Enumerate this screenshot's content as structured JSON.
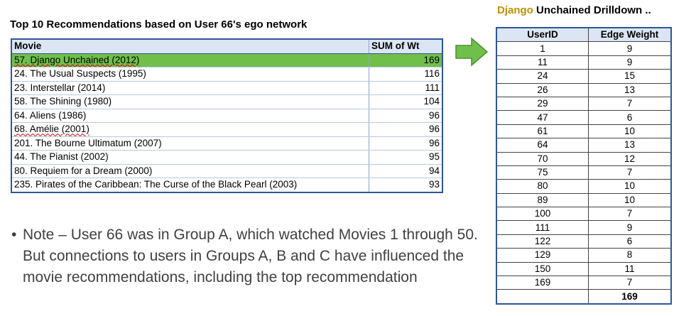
{
  "left": {
    "title": "Top 10 Recommendations based on User 66's ego network",
    "headers": {
      "movie": "Movie",
      "sum": "SUM of Wt"
    },
    "rows": [
      {
        "movie": "57. Django Unchained (2012)",
        "sum": "169",
        "highlight": true
      },
      {
        "movie": "24. The Usual Suspects (1995)",
        "sum": "116"
      },
      {
        "movie": "23. Interstellar (2014)",
        "sum": "111"
      },
      {
        "movie": "58. The Shining (1980)",
        "sum": "104"
      },
      {
        "movie": "64. Aliens (1986)",
        "sum": "96"
      },
      {
        "movie": "68. Amélie (2001)",
        "sum": "96"
      },
      {
        "movie": "201. The Bourne Ultimatum (2007)",
        "sum": "96"
      },
      {
        "movie": "44. The Pianist (2002)",
        "sum": "95"
      },
      {
        "movie": "80. Requiem for a Dream (2000)",
        "sum": "94"
      },
      {
        "movie": "235. Pirates of the Caribbean: The Curse of the Black Pearl (2003)",
        "sum": "93"
      }
    ]
  },
  "right": {
    "title_accent": "Django",
    "title_rest": " Unchained Drilldown ..",
    "headers": {
      "user": "UserID",
      "weight": "Edge Weight"
    },
    "rows": [
      {
        "user": "1",
        "weight": "9"
      },
      {
        "user": "11",
        "weight": "9"
      },
      {
        "user": "24",
        "weight": "15"
      },
      {
        "user": "26",
        "weight": "13"
      },
      {
        "user": "29",
        "weight": "7"
      },
      {
        "user": "47",
        "weight": "6"
      },
      {
        "user": "61",
        "weight": "10"
      },
      {
        "user": "64",
        "weight": "13"
      },
      {
        "user": "70",
        "weight": "12"
      },
      {
        "user": "75",
        "weight": "7"
      },
      {
        "user": "80",
        "weight": "10"
      },
      {
        "user": "89",
        "weight": "10"
      },
      {
        "user": "100",
        "weight": "7"
      },
      {
        "user": "111",
        "weight": "9"
      },
      {
        "user": "122",
        "weight": "6"
      },
      {
        "user": "129",
        "weight": "8"
      },
      {
        "user": "150",
        "weight": "11"
      },
      {
        "user": "169",
        "weight": "7"
      }
    ],
    "total": "169"
  },
  "note": {
    "bullet": "•",
    "text": "Note – User 66 was in Group A, which watched Movies 1 through 50.  But connections to users in Groups A, B and C have influenced the movie recommendations, including the top recommendation"
  },
  "colors": {
    "highlight": "#70bf4a",
    "arrow": "#70bf4a",
    "header_fill": "#dbe5f3",
    "border": "#2f5597",
    "accent_title": "#c09000"
  },
  "icons": {
    "arrow": "right-arrow-icon"
  }
}
